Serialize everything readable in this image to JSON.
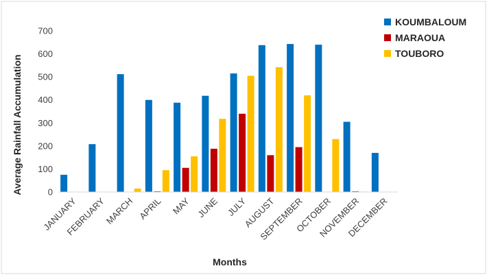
{
  "chart_data": {
    "type": "bar",
    "title": "",
    "xlabel": "Months",
    "ylabel": "Average Rainfall Accumulation",
    "ylim": [
      0,
      700
    ],
    "yticks": [
      0,
      100,
      200,
      300,
      400,
      500,
      600,
      700
    ],
    "grid": false,
    "legend_position": "top-right",
    "categories": [
      "JANUARY",
      "FEBRUARY",
      "MARCH",
      "APRIL",
      "MAY",
      "JUNE",
      "JULY",
      "AUGUST",
      "SEPTEMBER",
      "OCTOBER",
      "NOVEMBER",
      "DECEMBER"
    ],
    "series": [
      {
        "name": "KOUMBALOUM",
        "color": "#0070C0",
        "values": [
          75,
          208,
          512,
          400,
          388,
          418,
          515,
          638,
          643,
          640,
          305,
          170
        ]
      },
      {
        "name": "MARAOUA",
        "color": "#C00000",
        "values": [
          0,
          0,
          0,
          3,
          105,
          188,
          340,
          160,
          195,
          0,
          3,
          0
        ]
      },
      {
        "name": "TOUBORO",
        "color": "#FFC000",
        "values": [
          0,
          0,
          15,
          95,
          155,
          318,
          505,
          542,
          420,
          230,
          2,
          0
        ]
      }
    ]
  }
}
